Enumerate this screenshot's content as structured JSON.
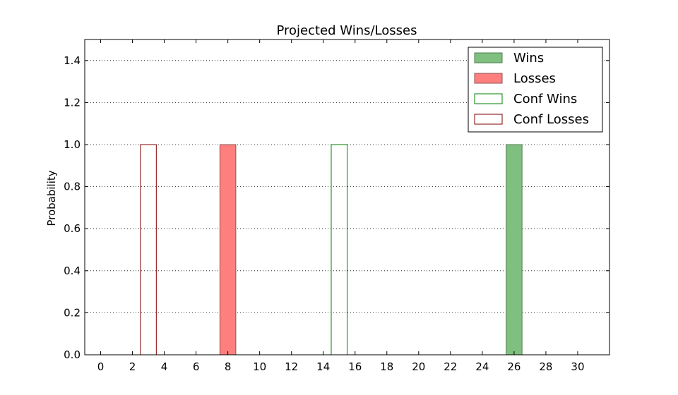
{
  "chart_data": {
    "type": "bar",
    "title": "Projected Wins/Losses",
    "xlabel": "",
    "ylabel": "Probability",
    "xlim": [
      -1,
      32
    ],
    "ylim": [
      0,
      1.5
    ],
    "xticks": [
      0,
      2,
      4,
      6,
      8,
      10,
      12,
      14,
      16,
      18,
      20,
      22,
      24,
      26,
      28,
      30
    ],
    "yticks": [
      0.0,
      0.2,
      0.4,
      0.6,
      0.8,
      1.0,
      1.2,
      1.4
    ],
    "ytick_labels": [
      "0.0",
      "0.2",
      "0.4",
      "0.6",
      "0.8",
      "1.0",
      "1.2",
      "1.4"
    ],
    "grid": "y-dotted",
    "legend_position": "top-right",
    "bar_width": 1,
    "x": [
      0,
      1,
      2,
      3,
      4,
      5,
      6,
      7,
      8,
      9,
      10,
      11,
      12,
      13,
      14,
      15,
      16,
      17,
      18,
      19,
      20,
      21,
      22,
      23,
      24,
      25,
      26,
      27,
      28,
      29,
      30,
      31
    ],
    "series": [
      {
        "name": "Wins",
        "style": "filled",
        "color": "#7fbf7f",
        "edge": "#4f7f4f",
        "values": [
          0,
          0,
          0,
          0,
          0,
          0,
          0,
          0,
          0,
          0,
          0,
          0,
          0,
          0,
          0,
          0,
          0,
          0,
          0,
          0,
          0,
          0,
          0,
          0,
          0,
          0,
          1,
          0,
          0,
          0,
          0,
          0
        ]
      },
      {
        "name": "Losses",
        "style": "filled",
        "color": "#ff7f7f",
        "edge": "#8f5050",
        "values": [
          0,
          0,
          0,
          0,
          0,
          0,
          0,
          0,
          1,
          0,
          0,
          0,
          0,
          0,
          0,
          0,
          0,
          0,
          0,
          0,
          0,
          0,
          0,
          0,
          0,
          0,
          0,
          0,
          0,
          0,
          0,
          0
        ]
      },
      {
        "name": "Conf Wins",
        "style": "outline",
        "color": "#008000",
        "edge": "#008000",
        "values": [
          0,
          0,
          0,
          0,
          0,
          0,
          0,
          0,
          0,
          0,
          0,
          0,
          0,
          0,
          0,
          1,
          0,
          0,
          0,
          0,
          0,
          0,
          0,
          0,
          0,
          0,
          0,
          0,
          0,
          0,
          0,
          0
        ]
      },
      {
        "name": "Conf Losses",
        "style": "outline",
        "color": "#800000",
        "edge": "#800000",
        "values": [
          0,
          0,
          0,
          1,
          0,
          0,
          0,
          0,
          0,
          0,
          0,
          0,
          0,
          0,
          0,
          0,
          0,
          0,
          0,
          0,
          0,
          0,
          0,
          0,
          0,
          0,
          0,
          0,
          0,
          0,
          0,
          0
        ]
      }
    ]
  }
}
